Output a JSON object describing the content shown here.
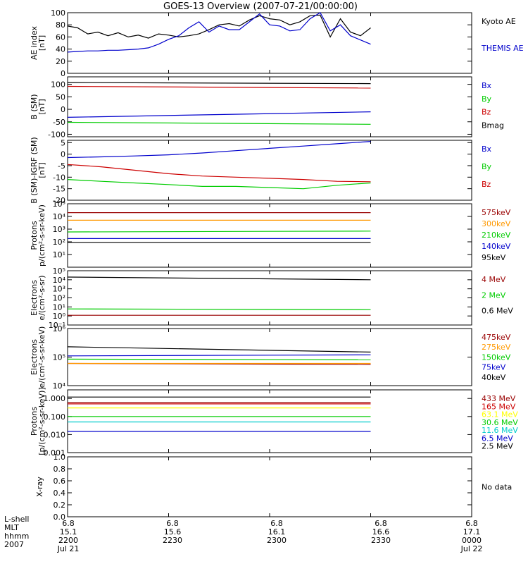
{
  "chart_data": [
    {
      "type": "line",
      "panel": "ae",
      "title": "GOES-13 Overview (2007-07-21/00:00:00)",
      "ylabel": [
        "AE index",
        "[nT]"
      ],
      "ylim": [
        0,
        100
      ],
      "yscale": "linear",
      "yticks": [
        0,
        20,
        40,
        60,
        80,
        100
      ],
      "ytick_labels": [
        "0",
        "20",
        "40",
        "60",
        "80",
        "100"
      ],
      "series": [
        {
          "name": "Kyoto AE",
          "color": "#000000",
          "x": [
            0,
            3,
            6,
            9,
            12,
            15,
            18,
            21,
            24,
            27,
            30,
            33,
            36,
            39,
            42,
            45,
            48,
            51,
            54,
            57,
            60,
            63,
            66,
            69,
            72,
            75,
            78,
            81,
            84,
            87,
            90
          ],
          "y": [
            78,
            75,
            65,
            68,
            62,
            67,
            60,
            63,
            58,
            65,
            63,
            60,
            62,
            65,
            72,
            80,
            82,
            78,
            88,
            95,
            90,
            88,
            80,
            85,
            95,
            96,
            60,
            90,
            68,
            62,
            75
          ]
        },
        {
          "name": "THEMIS AE",
          "color": "#0000cc",
          "x": [
            0,
            3,
            6,
            9,
            12,
            15,
            18,
            21,
            24,
            27,
            30,
            33,
            36,
            39,
            42,
            45,
            48,
            51,
            54,
            57,
            60,
            63,
            66,
            69,
            72,
            75,
            78,
            81,
            84,
            87,
            90
          ],
          "y": [
            35,
            36,
            37,
            37,
            38,
            38,
            39,
            40,
            42,
            48,
            56,
            62,
            75,
            85,
            68,
            78,
            72,
            72,
            85,
            98,
            80,
            78,
            70,
            72,
            90,
            100,
            70,
            80,
            62,
            55,
            48
          ]
        }
      ]
    },
    {
      "type": "line",
      "panel": "bsm",
      "ylabel": [
        "B (SM)",
        "[nT]"
      ],
      "ylim": [
        -110,
        130
      ],
      "yscale": "linear",
      "yticks": [
        -100,
        -50,
        0,
        50,
        100
      ],
      "ytick_labels": [
        "-100",
        "-50",
        "0",
        "50",
        "100"
      ],
      "series": [
        {
          "name": "Bx",
          "color": "#0000cc",
          "x": [
            0,
            90
          ],
          "y": [
            -32,
            -10
          ]
        },
        {
          "name": "By",
          "color": "#00cc00",
          "x": [
            0,
            90
          ],
          "y": [
            -52,
            -60
          ]
        },
        {
          "name": "Bz",
          "color": "#cc0000",
          "x": [
            0,
            90
          ],
          "y": [
            92,
            85
          ]
        },
        {
          "name": "Bmag",
          "color": "#000000",
          "x": [
            0,
            90
          ],
          "y": [
            107,
            103
          ]
        }
      ]
    },
    {
      "type": "line",
      "panel": "bigrf",
      "ylabel": [
        "B (SM)-IGRF (SM)",
        "[nT]"
      ],
      "ylim": [
        -20,
        6
      ],
      "yscale": "linear",
      "yticks": [
        -20,
        -15,
        -10,
        -5,
        0,
        5
      ],
      "ytick_labels": [
        "-20",
        "-15",
        "-10",
        "-5",
        "0",
        "5"
      ],
      "series": [
        {
          "name": "Bx",
          "color": "#0000cc",
          "x": [
            0,
            10,
            20,
            30,
            40,
            50,
            60,
            70,
            80,
            90
          ],
          "y": [
            -1.5,
            -1.2,
            -0.8,
            -0.3,
            0.5,
            1.5,
            2.5,
            3.5,
            4.5,
            5.5
          ]
        },
        {
          "name": "By",
          "color": "#00cc00",
          "x": [
            0,
            10,
            20,
            30,
            40,
            50,
            60,
            70,
            80,
            90
          ],
          "y": [
            -11,
            -11.8,
            -12.5,
            -13.2,
            -14,
            -14,
            -14.5,
            -15,
            -13.5,
            -12.5
          ]
        },
        {
          "name": "Bz",
          "color": "#cc0000",
          "x": [
            0,
            10,
            20,
            30,
            40,
            50,
            60,
            70,
            80,
            90
          ],
          "y": [
            -4.5,
            -5.5,
            -7,
            -8.5,
            -9.5,
            -10,
            -10.5,
            -11,
            -11.8,
            -12
          ]
        }
      ]
    },
    {
      "type": "line",
      "panel": "protons1",
      "ylabel": [
        "Protons",
        "p/(cm²-s-sr-keV)"
      ],
      "ylim": [
        1,
        100000
      ],
      "yscale": "log",
      "yticks": [
        10,
        100,
        1000,
        10000,
        100000
      ],
      "ytick_labels": [
        "10¹",
        "10²",
        "10³",
        "10⁴",
        "10⁵"
      ],
      "series": [
        {
          "name": "575keV",
          "color": "#990000",
          "x": [
            0,
            90
          ],
          "y": [
            20000,
            20000
          ]
        },
        {
          "name": "300keV",
          "color": "#ff9900",
          "x": [
            0,
            90
          ],
          "y": [
            5000,
            5000
          ]
        },
        {
          "name": "210keV",
          "color": "#00cc00",
          "x": [
            0,
            90
          ],
          "y": [
            600,
            700
          ]
        },
        {
          "name": "140keV",
          "color": "#0000cc",
          "x": [
            0,
            90
          ],
          "y": [
            180,
            180
          ]
        },
        {
          "name": "95keV",
          "color": "#000000",
          "x": [
            0,
            90
          ],
          "y": [
            90,
            90
          ]
        }
      ]
    },
    {
      "type": "line",
      "panel": "electrons1",
      "ylabel": [
        "Electrons",
        "e/(cm²-s-sr)"
      ],
      "ylim": [
        0.1,
        100000
      ],
      "yscale": "log",
      "yticks": [
        0.1,
        1,
        10,
        100,
        1000,
        10000,
        100000
      ],
      "ytick_labels": [
        "10⁻¹",
        "10⁰",
        "10¹",
        "10²",
        "10³",
        "10⁴",
        "10⁵"
      ],
      "series": [
        {
          "name": "4 MeV",
          "color": "#990000",
          "x": [
            0,
            90
          ],
          "y": [
            1.2,
            1.2
          ]
        },
        {
          "name": "2 MeV",
          "color": "#00cc00",
          "x": [
            0,
            90
          ],
          "y": [
            6,
            5
          ]
        },
        {
          "name": "0.6 MeV",
          "color": "#000000",
          "x": [
            0,
            90
          ],
          "y": [
            20000,
            10000
          ]
        }
      ]
    },
    {
      "type": "line",
      "panel": "electrons2",
      "ylabel": [
        "Electrons",
        "e/(cm²-s-sr-keV)"
      ],
      "ylim": [
        10000,
        1000000
      ],
      "yscale": "log",
      "yticks": [
        10000,
        100000,
        1000000
      ],
      "ytick_labels": [
        "10⁴",
        "10⁵",
        "10⁶"
      ],
      "series": [
        {
          "name": "475keV",
          "color": "#990000",
          "x": [
            0,
            90
          ],
          "y": [
            60000,
            55000
          ]
        },
        {
          "name": "275keV",
          "color": "#ff9900",
          "x": [
            0,
            90
          ],
          "y": [
            60000,
            60000
          ]
        },
        {
          "name": "150keV",
          "color": "#00cc00",
          "x": [
            0,
            90
          ],
          "y": [
            85000,
            80000
          ]
        },
        {
          "name": "75keV",
          "color": "#0000cc",
          "x": [
            0,
            90
          ],
          "y": [
            110000,
            120000
          ]
        },
        {
          "name": "40keV",
          "color": "#000000",
          "x": [
            0,
            90
          ],
          "y": [
            230000,
            150000
          ]
        }
      ]
    },
    {
      "type": "line",
      "panel": "protons2",
      "ylabel": [
        "Protons",
        "[p/(cm²-s-sr-keV)]"
      ],
      "ylim": [
        0.001,
        3
      ],
      "yscale": "log",
      "yticks": [
        0.001,
        0.01,
        0.1,
        1
      ],
      "ytick_labels": [
        "0.001",
        "0.010",
        "0.100",
        "1.000"
      ],
      "series": [
        {
          "name": "433 MeV",
          "color": "#990000",
          "x": [
            0,
            90
          ],
          "y": [
            0.6,
            0.6
          ]
        },
        {
          "name": "165 MeV",
          "color": "#cc0000",
          "x": [
            0,
            90
          ],
          "y": [
            0.5,
            0.5
          ]
        },
        {
          "name": "63.1 MeV",
          "color": "#ffff00",
          "x": [
            0,
            90
          ],
          "y": [
            0.3,
            0.3
          ]
        },
        {
          "name": "30.6 MeV",
          "color": "#00cc00",
          "x": [
            0,
            90
          ],
          "y": [
            0.1,
            0.1
          ]
        },
        {
          "name": "11.6 MeV",
          "color": "#00cccc",
          "x": [
            0,
            90
          ],
          "y": [
            0.05,
            0.05
          ]
        },
        {
          "name": "6.5 MeV",
          "color": "#0000cc",
          "x": [
            0,
            90
          ],
          "y": [
            0.015,
            0.015
          ]
        },
        {
          "name": "2.5 MeV",
          "color": "#000000",
          "x": [
            0,
            90
          ],
          "y": [
            1.2,
            1.2
          ]
        }
      ]
    },
    {
      "type": "line",
      "panel": "xray",
      "ylabel": [
        "X-ray"
      ],
      "ylim": [
        0,
        1
      ],
      "yscale": "linear",
      "yticks": [
        0,
        0.2,
        0.4,
        0.6,
        0.8,
        1.0
      ],
      "ytick_labels": [
        "0.0",
        "0.2",
        "0.4",
        "0.6",
        "0.8",
        "1.0"
      ],
      "series": [],
      "note": "No data"
    }
  ],
  "x_axis": {
    "xlim": [
      0,
      120
    ],
    "row_labels": [
      "L-shell",
      "MLT",
      "hhmm",
      "2007"
    ],
    "ticks": [
      {
        "x": 0,
        "lshell": "6.8",
        "mlt": "15.1",
        "hhmm": "2200",
        "date": "Jul 21"
      },
      {
        "x": 30,
        "lshell": "6.8",
        "mlt": "15.6",
        "hhmm": "2230",
        "date": ""
      },
      {
        "x": 60,
        "lshell": "6.8",
        "mlt": "16.1",
        "hhmm": "2300",
        "date": ""
      },
      {
        "x": 90,
        "lshell": "6.8",
        "mlt": "16.6",
        "hhmm": "2330",
        "date": ""
      },
      {
        "x": 120,
        "lshell": "6.8",
        "mlt": "17.1",
        "hhmm": "0000",
        "date": "Jul 22"
      }
    ]
  }
}
